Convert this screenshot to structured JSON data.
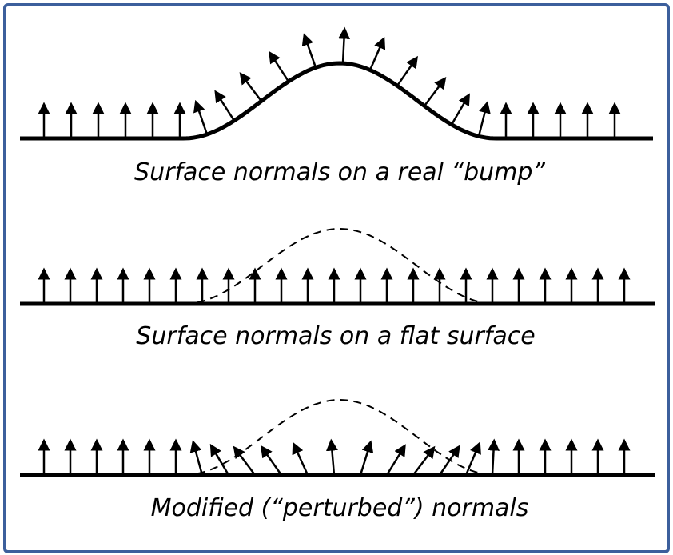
{
  "captions": {
    "real_bump": "Surface normals on a real “bump”",
    "flat": "Surface normals on a flat surface",
    "perturbed": "Modified (“perturbed”) normals"
  },
  "colors": {
    "border": "#3c5f9c",
    "ink": "#000000"
  },
  "panels": [
    {
      "name": "real-bump",
      "surface": "bump",
      "normals": "true-normals",
      "dashed_reference_bump": false
    },
    {
      "name": "flat-surface",
      "surface": "flat",
      "normals": "vertical",
      "dashed_reference_bump": true
    },
    {
      "name": "perturbed",
      "surface": "flat",
      "normals": "perturbed-from-bump",
      "dashed_reference_bump": true
    }
  ]
}
